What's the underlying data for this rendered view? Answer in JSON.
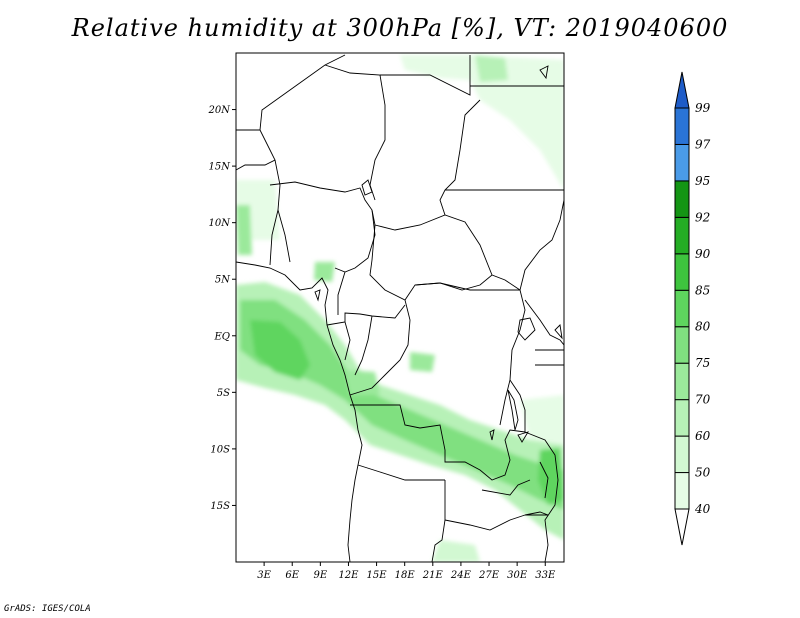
{
  "title": "Relative humidity at 300hPa [%], VT: 2019040600",
  "credit": "GrADS: IGES/COLA",
  "map": {
    "lon_range": [
      0,
      35
    ],
    "lat_range": [
      -20,
      25
    ],
    "lat_ticks": [
      {
        "value": 20,
        "label": "20N"
      },
      {
        "value": 15,
        "label": "15N"
      },
      {
        "value": 10,
        "label": "10N"
      },
      {
        "value": 5,
        "label": "5N"
      },
      {
        "value": 0,
        "label": "EQ"
      },
      {
        "value": -5,
        "label": "5S"
      },
      {
        "value": -10,
        "label": "10S"
      },
      {
        "value": -15,
        "label": "15S"
      }
    ],
    "lon_ticks": [
      {
        "value": 3,
        "label": "3E"
      },
      {
        "value": 6,
        "label": "6E"
      },
      {
        "value": 9,
        "label": "9E"
      },
      {
        "value": 12,
        "label": "12E"
      },
      {
        "value": 15,
        "label": "15E"
      },
      {
        "value": 18,
        "label": "18E"
      },
      {
        "value": 21,
        "label": "21E"
      },
      {
        "value": 24,
        "label": "24E"
      },
      {
        "value": 27,
        "label": "27E"
      },
      {
        "value": 30,
        "label": "30E"
      },
      {
        "value": 33,
        "label": "33E"
      }
    ]
  },
  "colorbar": {
    "levels": [
      "40",
      "50",
      "60",
      "70",
      "75",
      "80",
      "85",
      "90",
      "92",
      "95",
      "97",
      "99"
    ],
    "colors": [
      "#ffffff",
      "#e6fce6",
      "#d2f8d2",
      "#b7f1b7",
      "#9be99b",
      "#80e080",
      "#5ed55e",
      "#3ec43e",
      "#24ad24",
      "#149514",
      "#4a9be8",
      "#2a74d6",
      "#1e5cc8"
    ]
  }
}
